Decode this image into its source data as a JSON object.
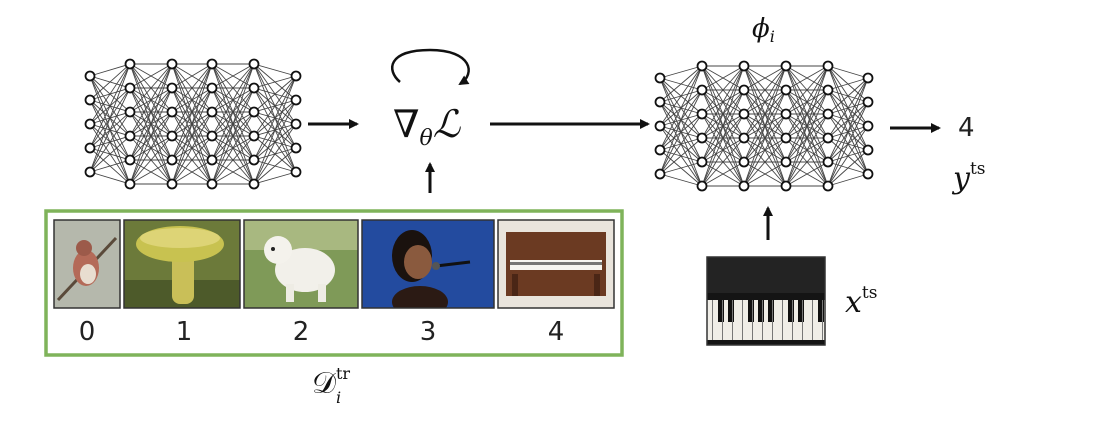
{
  "diagram": {
    "gradient_label": "∇θℒ",
    "gradient_symbol": "∇",
    "gradient_subscript": "θ",
    "gradient_loss": "ℒ",
    "phi_label": "ϕi",
    "phi_symbol": "ϕ",
    "phi_subscript": "i",
    "output_value": "4",
    "y_label": "yts",
    "y_symbol": "y",
    "y_superscript": "ts",
    "x_label": "xts",
    "x_symbol": "x",
    "x_superscript": "ts",
    "dataset_label": "𝒟itr",
    "dataset_symbol": "𝒟",
    "dataset_subscript": "i",
    "dataset_superscript": "tr"
  },
  "training_set": {
    "border_color": "#7fb35a",
    "items": [
      {
        "label": "0",
        "image": "bird-photo"
      },
      {
        "label": "1",
        "image": "mushroom-photo"
      },
      {
        "label": "2",
        "image": "dog-photo"
      },
      {
        "label": "3",
        "image": "singer-photo"
      },
      {
        "label": "4",
        "image": "piano-photo"
      }
    ]
  },
  "test_image": {
    "image": "piano-keys-photo"
  }
}
